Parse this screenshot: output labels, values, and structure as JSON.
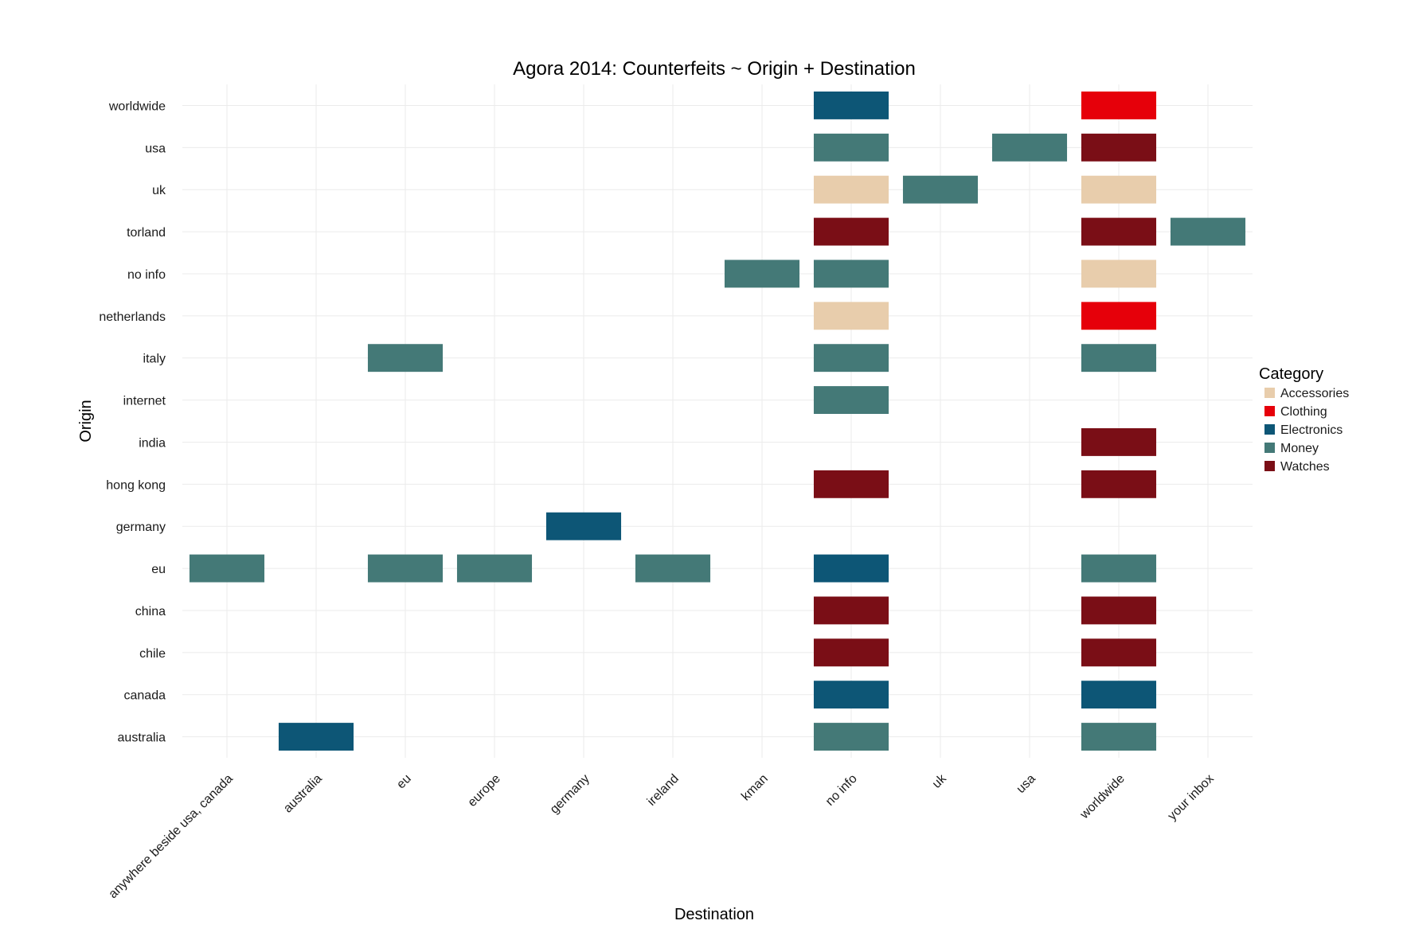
{
  "chart_data": {
    "type": "heatmap",
    "title": "Agora 2014: Counterfeits ~ Origin + Destination",
    "xlabel": "Destination",
    "ylabel": "Origin",
    "x_categories": [
      "anywhere beside usa, canada",
      "australia",
      "eu",
      "europe",
      "germany",
      "ireland",
      "kman",
      "no info",
      "uk",
      "usa",
      "worldwide",
      "your inbox"
    ],
    "y_categories": [
      "australia",
      "canada",
      "chile",
      "china",
      "eu",
      "germany",
      "hong kong",
      "india",
      "internet",
      "italy",
      "netherlands",
      "no info",
      "torland",
      "uk",
      "usa",
      "worldwide"
    ],
    "grid": true,
    "legend": {
      "title": "Category",
      "position": "right",
      "entries": [
        {
          "name": "Accessories",
          "color": "#E8CDAC"
        },
        {
          "name": "Clothing",
          "color": "#E6000A"
        },
        {
          "name": "Electronics",
          "color": "#0D5676"
        },
        {
          "name": "Money",
          "color": "#447977"
        },
        {
          "name": "Watches",
          "color": "#7A0E16"
        }
      ]
    },
    "cells": [
      {
        "x": "no info",
        "y": "worldwide",
        "category": "Electronics"
      },
      {
        "x": "worldwide",
        "y": "worldwide",
        "category": "Clothing"
      },
      {
        "x": "no info",
        "y": "usa",
        "category": "Money"
      },
      {
        "x": "usa",
        "y": "usa",
        "category": "Money"
      },
      {
        "x": "worldwide",
        "y": "usa",
        "category": "Watches"
      },
      {
        "x": "no info",
        "y": "uk",
        "category": "Accessories"
      },
      {
        "x": "uk",
        "y": "uk",
        "category": "Money"
      },
      {
        "x": "worldwide",
        "y": "uk",
        "category": "Accessories"
      },
      {
        "x": "no info",
        "y": "torland",
        "category": "Watches"
      },
      {
        "x": "worldwide",
        "y": "torland",
        "category": "Watches"
      },
      {
        "x": "your inbox",
        "y": "torland",
        "category": "Money"
      },
      {
        "x": "kman",
        "y": "no info",
        "category": "Money"
      },
      {
        "x": "no info",
        "y": "no info",
        "category": "Money"
      },
      {
        "x": "worldwide",
        "y": "no info",
        "category": "Accessories"
      },
      {
        "x": "no info",
        "y": "netherlands",
        "category": "Accessories"
      },
      {
        "x": "worldwide",
        "y": "netherlands",
        "category": "Clothing"
      },
      {
        "x": "eu",
        "y": "italy",
        "category": "Money"
      },
      {
        "x": "no info",
        "y": "italy",
        "category": "Money"
      },
      {
        "x": "worldwide",
        "y": "italy",
        "category": "Money"
      },
      {
        "x": "no info",
        "y": "internet",
        "category": "Money"
      },
      {
        "x": "worldwide",
        "y": "india",
        "category": "Watches"
      },
      {
        "x": "no info",
        "y": "hong kong",
        "category": "Watches"
      },
      {
        "x": "worldwide",
        "y": "hong kong",
        "category": "Watches"
      },
      {
        "x": "germany",
        "y": "germany",
        "category": "Electronics"
      },
      {
        "x": "anywhere beside usa, canada",
        "y": "eu",
        "category": "Money"
      },
      {
        "x": "eu",
        "y": "eu",
        "category": "Money"
      },
      {
        "x": "europe",
        "y": "eu",
        "category": "Money"
      },
      {
        "x": "ireland",
        "y": "eu",
        "category": "Money"
      },
      {
        "x": "no info",
        "y": "eu",
        "category": "Electronics"
      },
      {
        "x": "worldwide",
        "y": "eu",
        "category": "Money"
      },
      {
        "x": "no info",
        "y": "china",
        "category": "Watches"
      },
      {
        "x": "worldwide",
        "y": "china",
        "category": "Watches"
      },
      {
        "x": "no info",
        "y": "chile",
        "category": "Watches"
      },
      {
        "x": "worldwide",
        "y": "chile",
        "category": "Watches"
      },
      {
        "x": "no info",
        "y": "canada",
        "category": "Electronics"
      },
      {
        "x": "worldwide",
        "y": "canada",
        "category": "Electronics"
      },
      {
        "x": "australia",
        "y": "australia",
        "category": "Electronics"
      },
      {
        "x": "no info",
        "y": "australia",
        "category": "Money"
      },
      {
        "x": "worldwide",
        "y": "australia",
        "category": "Money"
      }
    ]
  }
}
